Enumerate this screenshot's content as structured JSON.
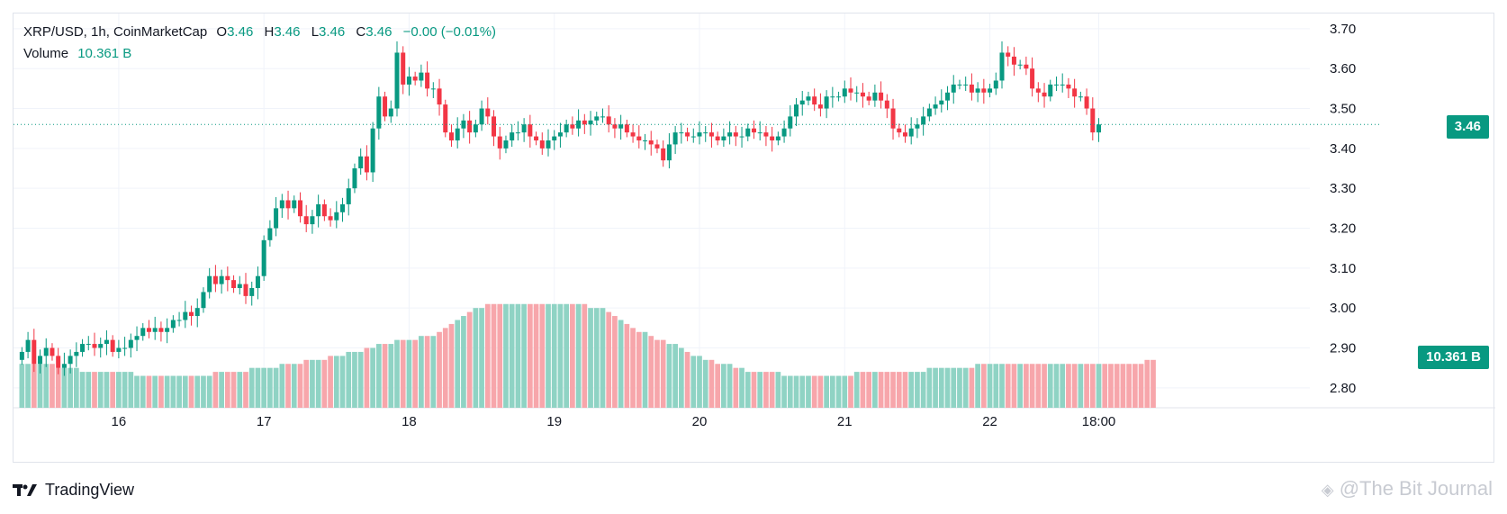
{
  "header": {
    "symbol": "XRP/USD, 1h, CoinMarketCap",
    "o_label": "O",
    "o": "3.46",
    "h_label": "H",
    "h": "3.46",
    "l_label": "L",
    "l": "3.46",
    "c_label": "C",
    "c": "3.46",
    "change": "−0.00 (−0.01%)",
    "volume_label": "Volume",
    "volume_value": "10.361 B"
  },
  "price_tag": "3.46",
  "volume_tag": "10.361 B",
  "footer": {
    "brand": "TradingView",
    "watermark": "@The Bit Journal"
  },
  "colors": {
    "up": "#089981",
    "down": "#f23645",
    "vol_up": "#8fd3c4",
    "vol_down": "#f7a6ab",
    "grid": "#f0f3fa",
    "axis_text": "#131722"
  },
  "chart_data": {
    "type": "candlestick",
    "title": "XRP/USD, 1h, CoinMarketCap",
    "y_axis": {
      "min": 2.75,
      "max": 3.72,
      "ticks": [
        "2.80",
        "2.90",
        "3.00",
        "3.10",
        "3.20",
        "3.30",
        "3.40",
        "3.50",
        "3.60",
        "3.70"
      ]
    },
    "x_ticks": [
      {
        "label": "16",
        "hour": 16
      },
      {
        "label": "17",
        "hour": 40
      },
      {
        "label": "18",
        "hour": 64
      },
      {
        "label": "19",
        "hour": 88
      },
      {
        "label": "20",
        "hour": 112
      },
      {
        "label": "21",
        "hour": 136
      },
      {
        "label": "22",
        "hour": 160
      },
      {
        "label": "18:00",
        "hour": 178
      }
    ],
    "last_price": 3.46,
    "closes": [
      2.89,
      2.92,
      2.86,
      2.88,
      2.9,
      2.88,
      2.85,
      2.86,
      2.88,
      2.89,
      2.91,
      2.91,
      2.9,
      2.91,
      2.92,
      2.89,
      2.9,
      2.9,
      2.92,
      2.93,
      2.95,
      2.94,
      2.95,
      2.94,
      2.95,
      2.97,
      2.97,
      2.99,
      2.98,
      3.0,
      3.04,
      3.08,
      3.06,
      3.08,
      3.07,
      3.05,
      3.06,
      3.03,
      3.05,
      3.08,
      3.17,
      3.2,
      3.25,
      3.27,
      3.25,
      3.27,
      3.23,
      3.21,
      3.23,
      3.26,
      3.23,
      3.22,
      3.24,
      3.26,
      3.3,
      3.35,
      3.38,
      3.34,
      3.45,
      3.53,
      3.48,
      3.5,
      3.64,
      3.56,
      3.58,
      3.57,
      3.59,
      3.55,
      3.55,
      3.51,
      3.44,
      3.42,
      3.45,
      3.47,
      3.44,
      3.46,
      3.5,
      3.48,
      3.43,
      3.4,
      3.42,
      3.44,
      3.44,
      3.46,
      3.43,
      3.42,
      3.4,
      3.42,
      3.43,
      3.44,
      3.46,
      3.45,
      3.47,
      3.46,
      3.47,
      3.48,
      3.48,
      3.46,
      3.45,
      3.46,
      3.44,
      3.43,
      3.42,
      3.42,
      3.41,
      3.4,
      3.37,
      3.41,
      3.44,
      3.44,
      3.43,
      3.43,
      3.44,
      3.44,
      3.43,
      3.42,
      3.43,
      3.44,
      3.43,
      3.43,
      3.45,
      3.44,
      3.44,
      3.43,
      3.42,
      3.43,
      3.45,
      3.48,
      3.51,
      3.52,
      3.53,
      3.51,
      3.5,
      3.53,
      3.53,
      3.53,
      3.55,
      3.54,
      3.54,
      3.53,
      3.52,
      3.54,
      3.52,
      3.5,
      3.45,
      3.44,
      3.43,
      3.45,
      3.46,
      3.48,
      3.5,
      3.51,
      3.52,
      3.54,
      3.56,
      3.56,
      3.56,
      3.54,
      3.55,
      3.54,
      3.55,
      3.57,
      3.64,
      3.63,
      3.61,
      3.61,
      3.6,
      3.55,
      3.54,
      3.53,
      3.56,
      3.56,
      3.56,
      3.55,
      3.53,
      3.53,
      3.5,
      3.44,
      3.46
    ],
    "volume": {
      "min": 2.75,
      "values": [
        2.86,
        2.86,
        2.86,
        2.86,
        2.86,
        2.86,
        2.85,
        2.85,
        2.85,
        2.85,
        2.84,
        2.84,
        2.84,
        2.84,
        2.84,
        2.84,
        2.84,
        2.84,
        2.84,
        2.83,
        2.83,
        2.83,
        2.83,
        2.83,
        2.83,
        2.83,
        2.83,
        2.83,
        2.83,
        2.83,
        2.83,
        2.83,
        2.84,
        2.84,
        2.84,
        2.84,
        2.84,
        2.84,
        2.85,
        2.85,
        2.85,
        2.85,
        2.85,
        2.86,
        2.86,
        2.86,
        2.86,
        2.87,
        2.87,
        2.87,
        2.87,
        2.88,
        2.88,
        2.88,
        2.89,
        2.89,
        2.89,
        2.9,
        2.9,
        2.91,
        2.91,
        2.91,
        2.92,
        2.92,
        2.92,
        2.92,
        2.93,
        2.93,
        2.93,
        2.94,
        2.95,
        2.96,
        2.97,
        2.98,
        2.99,
        3.0,
        3.0,
        3.01,
        3.01,
        3.01,
        3.01,
        3.01,
        3.01,
        3.01,
        3.01,
        3.01,
        3.01,
        3.01,
        3.01,
        3.01,
        3.01,
        3.01,
        3.01,
        3.01,
        3.0,
        3.0,
        3.0,
        2.99,
        2.98,
        2.97,
        2.96,
        2.95,
        2.94,
        2.94,
        2.93,
        2.92,
        2.92,
        2.91,
        2.91,
        2.9,
        2.89,
        2.88,
        2.88,
        2.87,
        2.87,
        2.86,
        2.86,
        2.86,
        2.85,
        2.85,
        2.84,
        2.84,
        2.84,
        2.84,
        2.84,
        2.84,
        2.83,
        2.83,
        2.83,
        2.83,
        2.83,
        2.83,
        2.83,
        2.83,
        2.83,
        2.83,
        2.83,
        2.83,
        2.84,
        2.84,
        2.84,
        2.84,
        2.84,
        2.84,
        2.84,
        2.84,
        2.84,
        2.84,
        2.84,
        2.84,
        2.85,
        2.85,
        2.85,
        2.85,
        2.85,
        2.85,
        2.85,
        2.85,
        2.86,
        2.86,
        2.86,
        2.86,
        2.86,
        2.86,
        2.86,
        2.86,
        2.86,
        2.86,
        2.86,
        2.86,
        2.86,
        2.86,
        2.86,
        2.86,
        2.86,
        2.86,
        2.86,
        2.86,
        2.86,
        2.86,
        2.86,
        2.86,
        2.86,
        2.86,
        2.86,
        2.86,
        2.87,
        2.87
      ]
    }
  }
}
